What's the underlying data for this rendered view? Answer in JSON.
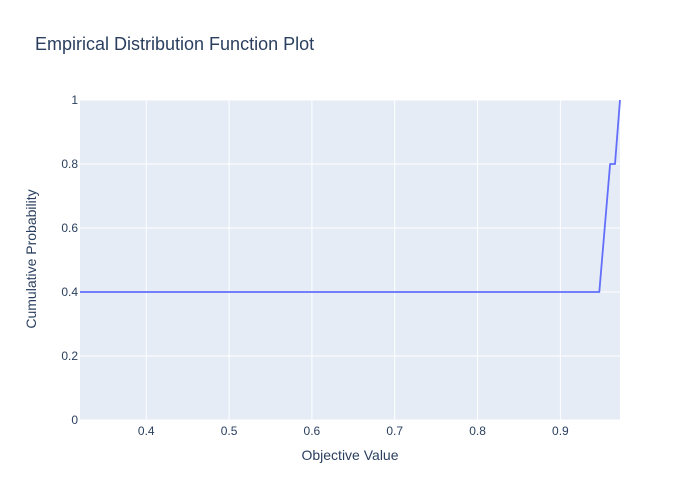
{
  "chart_data": {
    "type": "line",
    "title": "Empirical Distribution Function Plot",
    "xlabel": "Objective Value",
    "ylabel": "Cumulative Probability",
    "xlim": [
      0.32,
      0.972
    ],
    "ylim": [
      0,
      1
    ],
    "grid": true,
    "x_ticks": [
      0.4,
      0.5,
      0.6,
      0.7,
      0.8,
      0.9
    ],
    "x_tick_labels": [
      "0.4",
      "0.5",
      "0.6",
      "0.7",
      "0.8",
      "0.9"
    ],
    "y_ticks": [
      0,
      0.2,
      0.4,
      0.6,
      0.8,
      1
    ],
    "y_tick_labels": [
      "0",
      "0.2",
      "0.4",
      "0.6",
      "0.8",
      "1"
    ],
    "series": [
      {
        "color": "#636efa",
        "x": [
          0.32,
          0.947,
          0.96,
          0.966,
          0.972
        ],
        "y": [
          0.4,
          0.4,
          0.8,
          0.8,
          1.0
        ]
      }
    ]
  },
  "colors": {
    "plot_background": "#e5ecf6",
    "grid": "#ffffff",
    "text": "#2a3f5f",
    "line": "#636efa"
  }
}
